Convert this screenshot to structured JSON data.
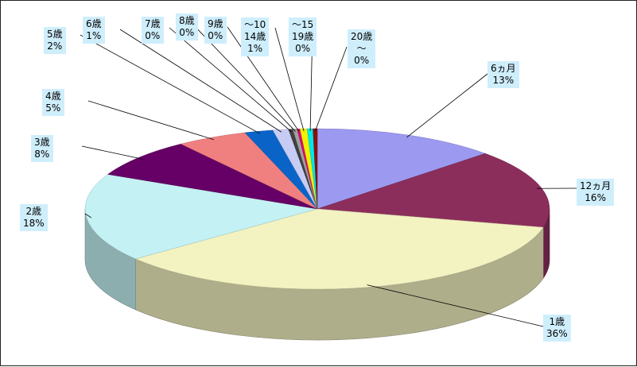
{
  "chart_data": {
    "type": "pie",
    "style": "3d",
    "title": "",
    "slices": [
      {
        "label": "6ヵ月",
        "percent": "13%",
        "value": 13,
        "color": "#9c99f0"
      },
      {
        "label": "12ヵ月",
        "percent": "16%",
        "value": 16,
        "color": "#8c2e5c"
      },
      {
        "label": "1歳",
        "percent": "36%",
        "value": 36,
        "color": "#f3f2c1"
      },
      {
        "label": "2歳",
        "percent": "18%",
        "value": 18,
        "color": "#c4f1f3"
      },
      {
        "label": "3歳",
        "percent": "8%",
        "value": 8,
        "color": "#660066"
      },
      {
        "label": "4歳",
        "percent": "5%",
        "value": 5,
        "color": "#f08080"
      },
      {
        "label": "5歳",
        "percent": "2%",
        "value": 2,
        "color": "#0a64c8"
      },
      {
        "label": "6歳",
        "percent": "1%",
        "value": 1.1,
        "color": "#c8ccf4"
      },
      {
        "label": "7歳",
        "percent": "0%",
        "value": 0.3,
        "color": "#404040"
      },
      {
        "label": "8歳",
        "percent": "0%",
        "value": 0.3,
        "color": "#a0a0a0"
      },
      {
        "label": "9歳",
        "percent": "0%",
        "value": 0.2,
        "color": "#e00070"
      },
      {
        "label": "～10\n14歳",
        "percent": "1%",
        "value": 0.5,
        "color": "#f0f000"
      },
      {
        "label": "～15\n19歳",
        "percent": "0%",
        "value": 0.4,
        "color": "#00e8e8"
      },
      {
        "label": "20歳\n～",
        "percent": "0%",
        "value": 0.3,
        "color": "#8c1010"
      }
    ]
  }
}
